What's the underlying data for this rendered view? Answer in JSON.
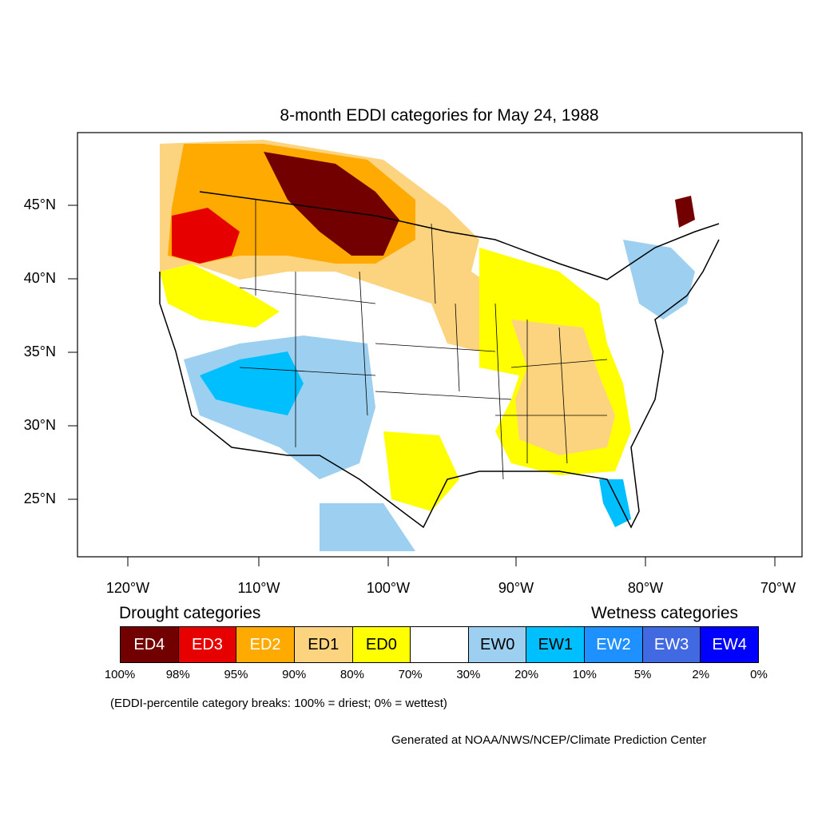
{
  "map": {
    "title": "8-month EDDI categories for May 24, 1988",
    "lat_labels": [
      "45°N",
      "40°N",
      "35°N",
      "30°N",
      "25°N"
    ],
    "lon_labels": [
      "120°W",
      "110°W",
      "100°W",
      "90°W",
      "80°W",
      "70°W"
    ]
  },
  "legend": {
    "drought_heading": "Drought categories",
    "wetness_heading": "Wetness categories",
    "categories": [
      {
        "label": "ED4",
        "color": "#730000",
        "text_color": "#ffffff"
      },
      {
        "label": "ED3",
        "color": "#e60000",
        "text_color": "#ffffff"
      },
      {
        "label": "ED2",
        "color": "#ffaa00",
        "text_color": "#ffffff"
      },
      {
        "label": "ED1",
        "color": "#fcd37f",
        "text_color": "#000000"
      },
      {
        "label": "ED0",
        "color": "#ffff00",
        "text_color": "#000000"
      },
      {
        "label": "",
        "color": "#ffffff",
        "text_color": "#000000"
      },
      {
        "label": "EW0",
        "color": "#9dd0f0",
        "text_color": "#000000"
      },
      {
        "label": "EW1",
        "color": "#00bfff",
        "text_color": "#000000"
      },
      {
        "label": "EW2",
        "color": "#1e90ff",
        "text_color": "#ffffff"
      },
      {
        "label": "EW3",
        "color": "#4169e1",
        "text_color": "#ffffff"
      },
      {
        "label": "EW4",
        "color": "#0000ff",
        "text_color": "#ffffff"
      }
    ],
    "breaks": [
      "100%",
      "98%",
      "95%",
      "90%",
      "80%",
      "70%",
      "30%",
      "20%",
      "10%",
      "5%",
      "2%",
      "0%"
    ]
  },
  "note": "(EDDI-percentile category breaks: 100% = driest; 0% = wettest)",
  "credit": "Generated at NOAA/NWS/NCEP/Climate Prediction Center"
}
